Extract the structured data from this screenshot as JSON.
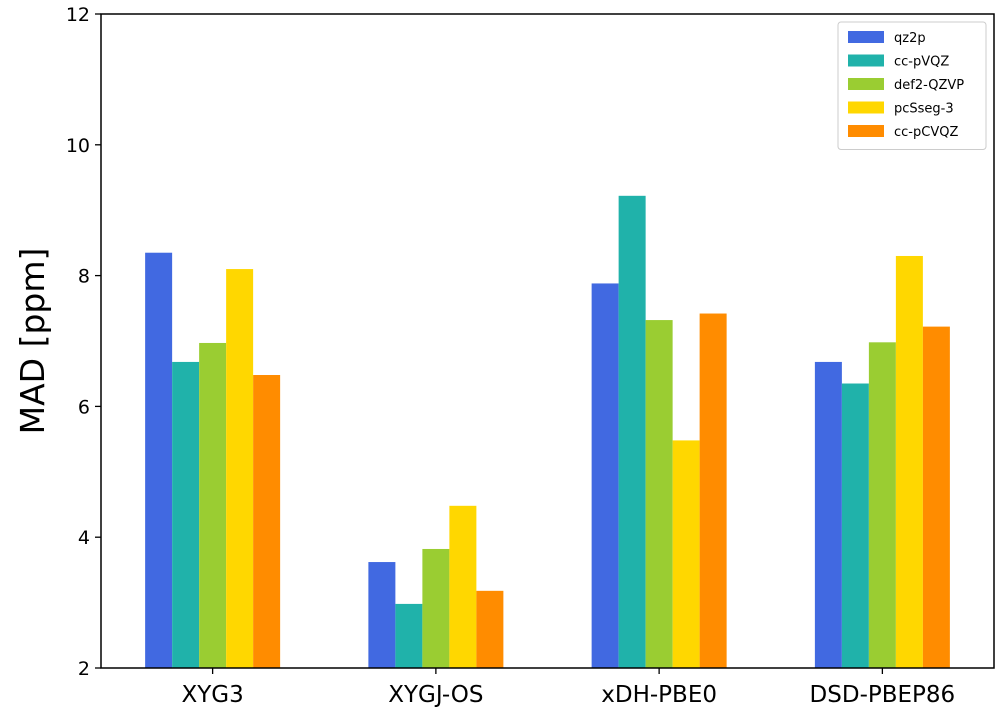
{
  "chart_data": {
    "type": "bar",
    "title": "",
    "xlabel": "",
    "ylabel": "MAD [ppm]",
    "ylim": [
      2,
      12
    ],
    "yticks": [
      2,
      4,
      6,
      8,
      10,
      12
    ],
    "grid": false,
    "legend_position": "top-right",
    "categories": [
      "XYG3",
      "XYGJ-OS",
      "xDH-PBE0",
      "DSD-PBEP86"
    ],
    "series": [
      {
        "name": "qz2p",
        "color": "#4169E1",
        "values": [
          8.35,
          3.62,
          7.88,
          6.68
        ]
      },
      {
        "name": "cc-pVQZ",
        "color": "#20B2AA",
        "values": [
          6.68,
          2.98,
          9.22,
          6.35
        ]
      },
      {
        "name": "def2-QZVP",
        "color": "#9ACD32",
        "values": [
          6.97,
          3.82,
          7.32,
          6.98
        ]
      },
      {
        "name": "pcSseg-3",
        "color": "#FFD700",
        "values": [
          8.1,
          4.48,
          5.48,
          8.3
        ]
      },
      {
        "name": "cc-pCVQZ",
        "color": "#FF8C00",
        "values": [
          6.48,
          3.18,
          7.42,
          7.22
        ]
      }
    ]
  }
}
